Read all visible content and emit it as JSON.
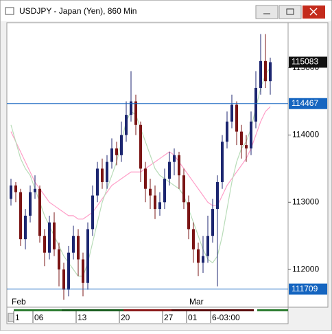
{
  "window": {
    "title": "USDJPY - Japan (Yen), 860 Min"
  },
  "chart_data": {
    "type": "candlestick",
    "categories": [
      null,
      "1",
      null,
      null,
      null,
      "06",
      null,
      null,
      null,
      null,
      null,
      null,
      null,
      null,
      "13",
      null,
      null,
      null,
      null,
      null,
      null,
      null,
      null,
      "20",
      null,
      null,
      null,
      null,
      null,
      null,
      null,
      null,
      "27",
      null,
      null,
      null,
      null,
      "01",
      null,
      null,
      null,
      null,
      "6-03:00",
      null,
      null,
      null,
      null,
      null,
      null,
      null,
      null,
      null,
      null,
      null,
      null
    ],
    "months": [
      "Feb",
      null,
      null,
      null,
      null,
      null,
      null,
      null,
      null,
      null,
      null,
      null,
      null,
      null,
      null,
      null,
      null,
      null,
      null,
      null,
      null,
      null,
      null,
      null,
      null,
      null,
      null,
      null,
      null,
      null,
      null,
      null,
      null,
      null,
      null,
      null,
      null,
      "Mar",
      null,
      null,
      null,
      null,
      null,
      null,
      null,
      null,
      null,
      null,
      null,
      null,
      null,
      null,
      null,
      null,
      null
    ],
    "open": [
      113050,
      113250,
      113150,
      112450,
      112800,
      113150,
      113200,
      112500,
      112250,
      112700,
      112300,
      112000,
      111700,
      112250,
      112500,
      112150,
      111800,
      112600,
      113100,
      113500,
      113300,
      113600,
      113800,
      113700,
      114000,
      114300,
      114500,
      114150,
      113500,
      113200,
      113100,
      112900,
      113000,
      113350,
      113600,
      113700,
      113400,
      113000,
      112600,
      112300,
      112100,
      112200,
      112500,
      112900,
      113300,
      113900,
      114200,
      114450,
      114050,
      113850,
      113800,
      114200,
      114700,
      115100,
      114800
    ],
    "high": [
      113350,
      113300,
      113200,
      112900,
      113250,
      113400,
      113250,
      112600,
      112800,
      112850,
      112400,
      112100,
      112350,
      112650,
      112600,
      112250,
      112700,
      113250,
      113600,
      113650,
      113700,
      113950,
      113900,
      114200,
      114500,
      114950,
      114600,
      114200,
      113600,
      113350,
      113250,
      113150,
      113500,
      113750,
      113800,
      113750,
      113500,
      113100,
      112700,
      112400,
      112500,
      112800,
      113050,
      113400,
      114000,
      114350,
      114600,
      114500,
      114150,
      114000,
      114350,
      114950,
      115500,
      115500,
      115150
    ],
    "low": [
      112950,
      113000,
      112350,
      112300,
      112700,
      113050,
      112400,
      112050,
      112150,
      112200,
      111750,
      111550,
      111600,
      112150,
      111900,
      111600,
      111700,
      112500,
      113000,
      113200,
      113200,
      113500,
      113550,
      113600,
      113900,
      114200,
      114000,
      113300,
      113000,
      112900,
      112750,
      112800,
      112900,
      113250,
      113400,
      113200,
      112900,
      112450,
      112100,
      111900,
      111950,
      112100,
      112400,
      111750,
      113200,
      113800,
      114100,
      113850,
      113650,
      113600,
      113700,
      114100,
      114600,
      114700,
      114600
    ],
    "close": [
      113250,
      113150,
      112450,
      112800,
      113150,
      113200,
      112500,
      112250,
      112700,
      112300,
      112000,
      111700,
      112250,
      112500,
      112150,
      111800,
      112600,
      113100,
      113500,
      113300,
      113600,
      113800,
      113700,
      114000,
      114300,
      114500,
      114150,
      113500,
      113200,
      113100,
      112900,
      113000,
      113350,
      113600,
      113700,
      113400,
      113000,
      112600,
      112300,
      112100,
      112200,
      112500,
      112900,
      113300,
      113900,
      114200,
      114450,
      114050,
      113850,
      113800,
      114200,
      114700,
      115100,
      114800,
      115083
    ],
    "up_color": "#1c2670",
    "down_color": "#7a1414",
    "series": [
      {
        "color": "#ff9ec8",
        "values": [
          114050,
          113900,
          113750,
          113600,
          113450,
          113300,
          113200,
          113100,
          113000,
          112950,
          112900,
          112850,
          112800,
          112800,
          112750,
          112750,
          112800,
          112850,
          112950,
          113050,
          113150,
          113250,
          113300,
          113350,
          113400,
          113450,
          113450,
          113450,
          113500,
          113550,
          113600,
          113650,
          113700,
          113750,
          113700,
          113600,
          113500,
          113400,
          113300,
          113200,
          113100,
          113000,
          112950,
          112950,
          113100,
          113250,
          113350,
          113450,
          113550,
          113650,
          113800,
          114000,
          114200,
          114350,
          114420
        ]
      },
      {
        "color": "#b8dcb8",
        "values": [
          114150,
          113900,
          113650,
          113500,
          113400,
          113200,
          113000,
          112800,
          112650,
          112500,
          112350,
          112200,
          112100,
          112000,
          111900,
          111900,
          112100,
          112400,
          112700,
          113000,
          113200,
          113400,
          113600,
          113900,
          114200,
          114350,
          114300,
          114100,
          113900,
          113700,
          113500,
          113400,
          113350,
          113300,
          113250,
          113200,
          113100,
          112900,
          112700,
          112500,
          112300,
          112150,
          112100,
          112200,
          112500,
          112900,
          113300,
          113600,
          113800,
          113900,
          114100,
          114400,
          114700,
          114900,
          115000
        ]
      }
    ],
    "hlines": [
      114467,
      111709
    ],
    "hline_color": "#1565c0",
    "ylim": [
      111470,
      115650
    ],
    "yticks": [
      112000,
      113000,
      114000,
      115000
    ]
  }
}
